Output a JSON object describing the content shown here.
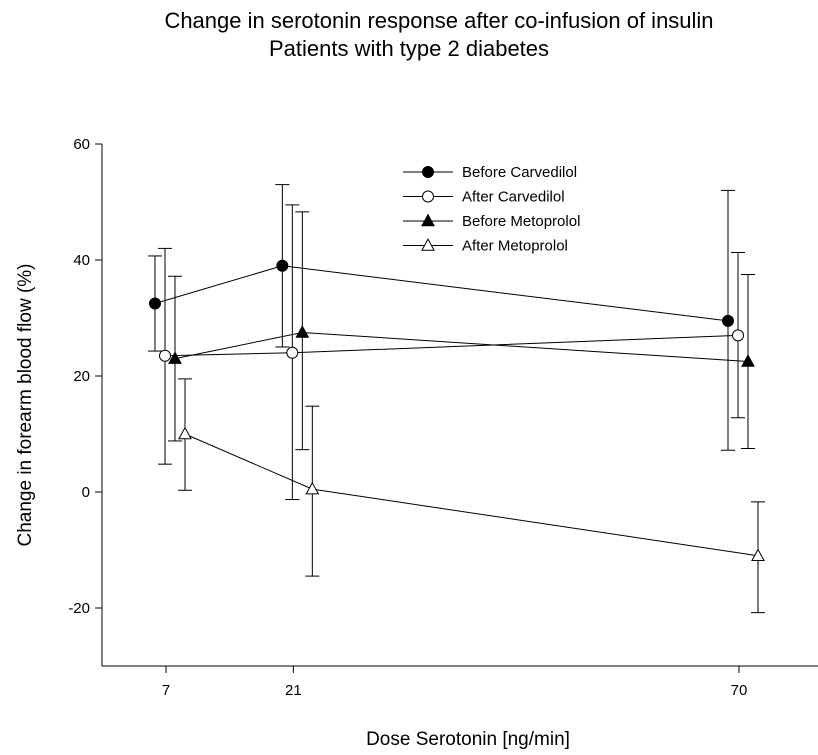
{
  "chart_data": {
    "type": "line",
    "title": "Change in serotonin response after co-infusion of insulin",
    "subtitle": "Patients with type 2 diabetes",
    "xlabel": "Dose Serotonin [ng/min]",
    "ylabel": "Change in forearm blood flow (%)",
    "ylim": [
      -30,
      60
    ],
    "yticks": [
      -20,
      0,
      20,
      40,
      60
    ],
    "xticks": [
      7,
      21,
      70
    ],
    "grid": false,
    "legend_position": "top-center",
    "series": [
      {
        "name": "Before Carvedilol",
        "marker": "filled-circle",
        "x": [
          7,
          21,
          70
        ],
        "y": [
          32.5,
          39,
          29.5
        ],
        "err_upper": [
          40.7,
          53,
          52
        ],
        "err_lower": [
          24.3,
          25,
          7.2
        ]
      },
      {
        "name": "After Carvedilol",
        "marker": "open-circle",
        "x": [
          7,
          21,
          70
        ],
        "y": [
          23.5,
          24,
          27
        ],
        "err_upper": [
          42,
          49.5,
          41.3
        ],
        "err_lower": [
          4.8,
          -1.3,
          12.8
        ]
      },
      {
        "name": "Before Metoprolol",
        "marker": "filled-triangle",
        "x": [
          7,
          21,
          70
        ],
        "y": [
          23,
          27.5,
          22.5
        ],
        "err_upper": [
          37.2,
          48.3,
          37.5
        ],
        "err_lower": [
          8.8,
          7.3,
          7.5
        ]
      },
      {
        "name": "After Metoprolol",
        "marker": "open-triangle",
        "x": [
          7,
          21,
          70
        ],
        "y": [
          10,
          0.5,
          -11
        ],
        "err_upper": [
          19.5,
          14.8,
          -1.7
        ],
        "err_lower": [
          0.3,
          -14.5,
          -20.8
        ]
      }
    ]
  }
}
